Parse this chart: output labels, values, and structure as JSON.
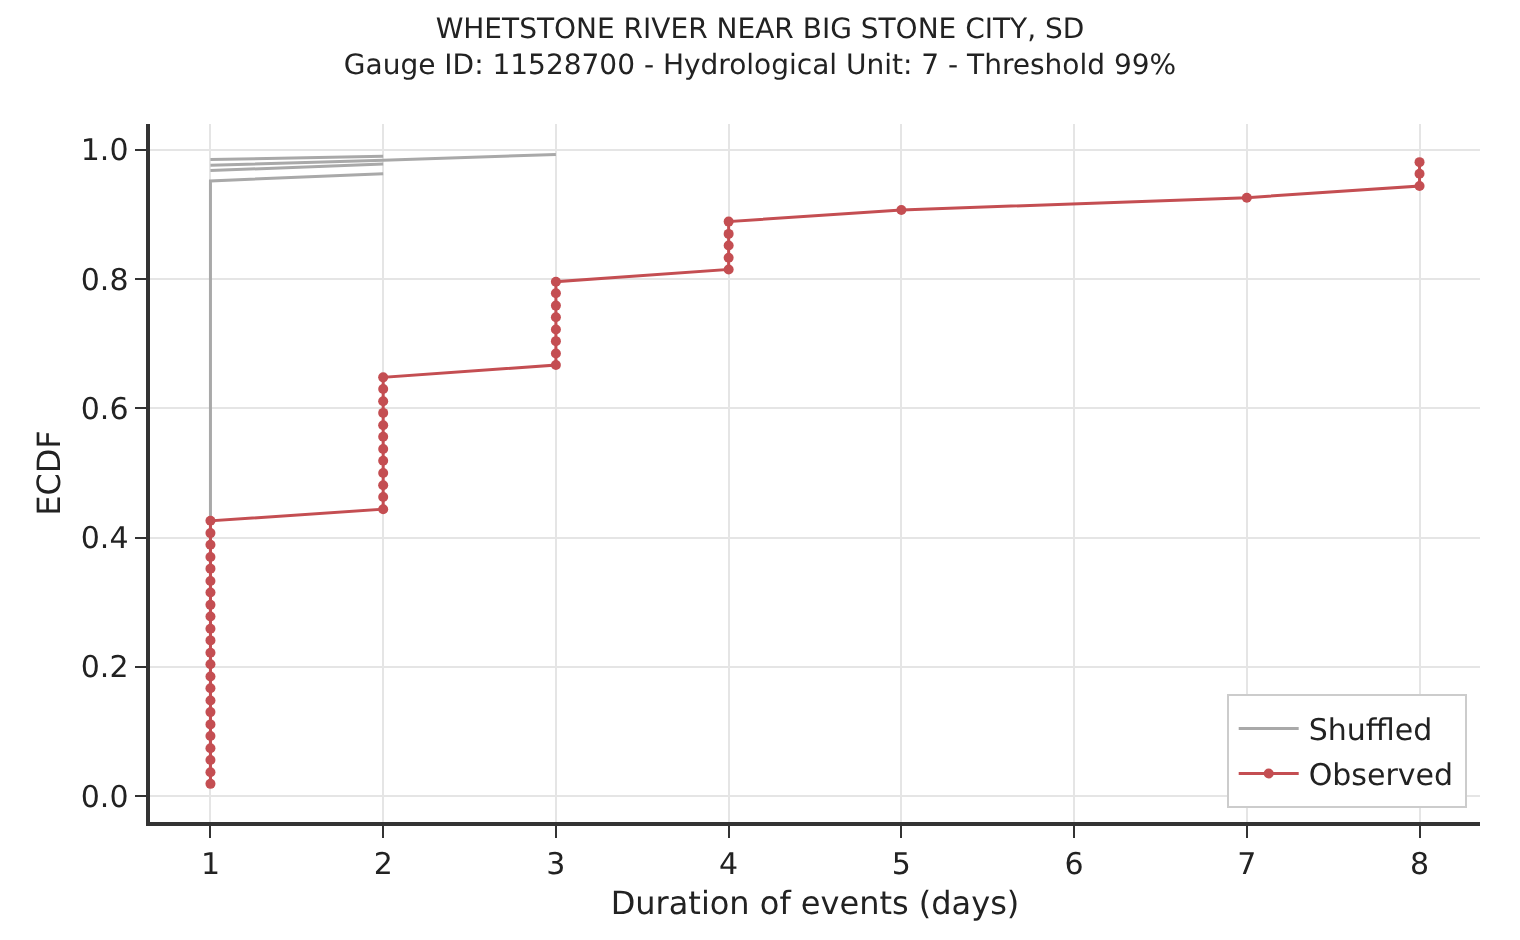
{
  "chart_data": {
    "type": "line",
    "title": "WHETSTONE RIVER NEAR BIG STONE CITY, SD",
    "subtitle": "Gauge ID: 11528700 - Hydrological Unit: 7 - Threshold 99%",
    "xlabel": "Duration of events (days)",
    "ylabel": "ECDF",
    "xlim": [
      0.65,
      8.35
    ],
    "ylim": [
      -0.04,
      1.04
    ],
    "xticks": [
      1,
      2,
      3,
      4,
      5,
      6,
      7,
      8
    ],
    "yticks": [
      {
        "value": 0,
        "label": "0.0"
      },
      {
        "value": 0.2,
        "label": "0.2"
      },
      {
        "value": 0.4,
        "label": "0.4"
      },
      {
        "value": 0.6,
        "label": "0.6"
      },
      {
        "value": 0.8,
        "label": "0.8"
      },
      {
        "value": 1,
        "label": "1.0"
      }
    ],
    "grid": true,
    "legend": "bottom right",
    "series": [
      {
        "name": "Shuffled",
        "color": "#a9a9a9",
        "marker": "none",
        "x": [
          1,
          1,
          2
        ],
        "values": [
          0.02,
          0.952,
          0.963
        ]
      },
      {
        "color": "#a9a9a9",
        "marker": "none",
        "x": [
          1,
          2
        ],
        "values": [
          0.968,
          0.978
        ]
      },
      {
        "color": "#a9a9a9",
        "marker": "none",
        "x": [
          1,
          2
        ],
        "values": [
          0.985,
          0.99
        ]
      },
      {
        "color": "#a9a9a9",
        "marker": "none",
        "x": [
          1,
          2,
          3
        ],
        "values": [
          0.976,
          0.984,
          0.993
        ]
      },
      {
        "name": "Observed",
        "color": "#c44e52",
        "marker": "circle",
        "x": [
          1,
          1,
          1,
          1,
          1,
          1,
          1,
          1,
          1,
          1,
          1,
          1,
          1,
          1,
          1,
          1,
          1,
          1,
          1,
          1,
          1,
          1,
          1,
          2,
          2,
          2,
          2,
          2,
          2,
          2,
          2,
          2,
          2,
          2,
          2,
          3,
          3,
          3,
          3,
          3,
          3,
          3,
          3,
          4,
          4,
          4,
          4,
          4,
          5,
          7,
          8,
          8,
          8
        ],
        "values": [
          0.019,
          0.037,
          0.056,
          0.074,
          0.093,
          0.111,
          0.13,
          0.148,
          0.167,
          0.185,
          0.204,
          0.222,
          0.241,
          0.259,
          0.278,
          0.296,
          0.315,
          0.333,
          0.352,
          0.37,
          0.389,
          0.407,
          0.426,
          0.444,
          0.463,
          0.481,
          0.5,
          0.519,
          0.537,
          0.556,
          0.574,
          0.593,
          0.611,
          0.63,
          0.648,
          0.667,
          0.685,
          0.704,
          0.722,
          0.741,
          0.759,
          0.778,
          0.796,
          0.815,
          0.833,
          0.852,
          0.87,
          0.889,
          0.907,
          0.926,
          0.944,
          0.963,
          0.981
        ]
      }
    ]
  }
}
